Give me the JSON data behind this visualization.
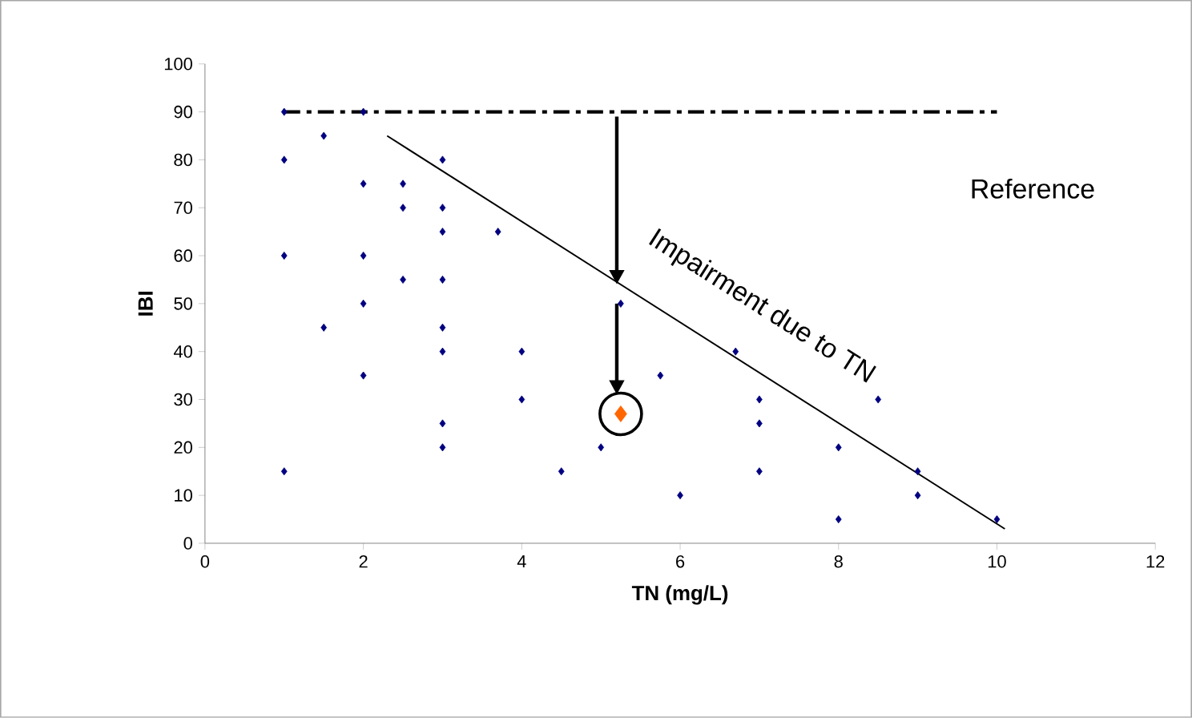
{
  "chart_data": {
    "type": "scatter",
    "xlabel": "TN (mg/L)",
    "ylabel": "IBI",
    "xlim": [
      0,
      12
    ],
    "xticks": [
      0,
      2,
      4,
      6,
      8,
      10,
      12
    ],
    "ylim": [
      0,
      100
    ],
    "yticks": [
      0,
      10,
      20,
      30,
      40,
      50,
      60,
      70,
      80,
      90,
      100
    ],
    "grid": false,
    "marker": "diamond",
    "series": [
      {
        "color": "#000080",
        "x": [
          1,
          1,
          1,
          1,
          1.5,
          1.5,
          2,
          2,
          2,
          2,
          2,
          2.5,
          2.5,
          2.5,
          3,
          3,
          3,
          3,
          3,
          3,
          3,
          3,
          3.7,
          4,
          4,
          4.5,
          5,
          5.25,
          5.75,
          6,
          6.7,
          7,
          7,
          7,
          8,
          8,
          8.5,
          9,
          9,
          10
        ],
        "values": [
          90,
          80,
          60,
          15,
          85,
          45,
          90,
          75,
          60,
          50,
          35,
          75,
          70,
          55,
          80,
          70,
          65,
          55,
          45,
          40,
          25,
          20,
          65,
          40,
          30,
          15,
          20,
          50,
          35,
          10,
          40,
          30,
          25,
          15,
          20,
          5,
          30,
          15,
          10,
          5
        ]
      },
      {
        "color": "#ff6600",
        "x": [
          5.25
        ],
        "values": [
          27
        ]
      },
      {
        "type": "line",
        "color": "#000000",
        "marker": "none",
        "line_style": "dashdot",
        "x": [
          1,
          10
        ],
        "values": [
          90,
          90
        ]
      },
      {
        "type": "line",
        "color": "#000000",
        "marker": "none",
        "line_style": "solid",
        "x": [
          2.3,
          10.1
        ],
        "values": [
          85,
          3
        ]
      }
    ],
    "annotations": [
      "Reference",
      "Impairment due to TN"
    ]
  }
}
